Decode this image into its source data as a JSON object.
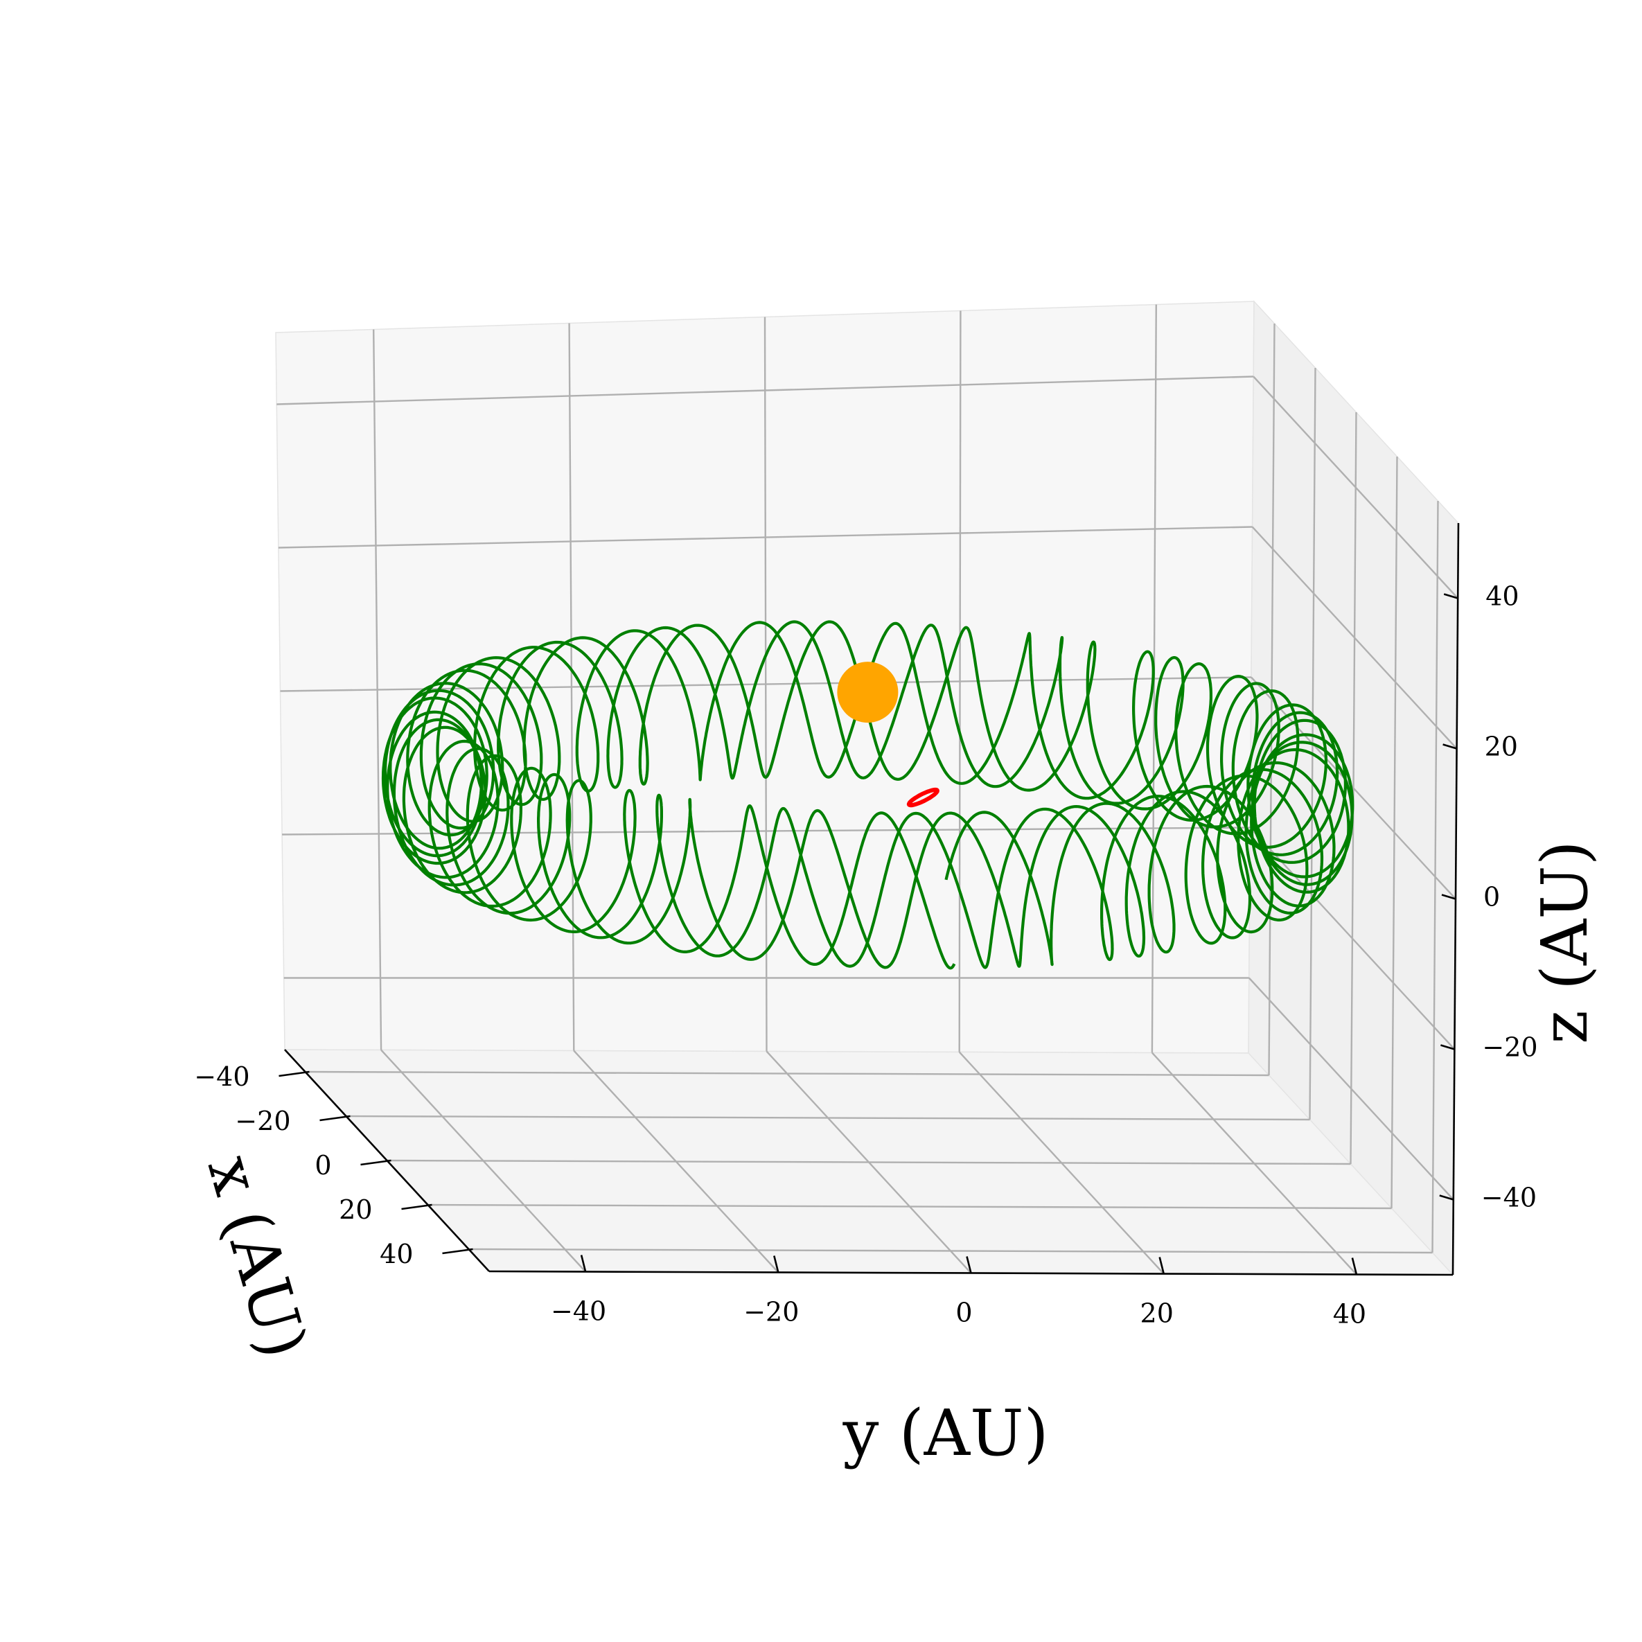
{
  "chart_data": {
    "type": "line",
    "projection": "3d",
    "title": "",
    "xlabel": "x (AU)",
    "ylabel": "y (AU)",
    "zlabel": "z (AU)",
    "xlim": [
      -50,
      50
    ],
    "ylim": [
      -50,
      50
    ],
    "zlim": [
      -50,
      50
    ],
    "xticks": [
      -40,
      -20,
      0,
      20,
      40
    ],
    "yticks": [
      -40,
      -20,
      0,
      20,
      40
    ],
    "zticks": [
      -40,
      -20,
      0,
      20,
      40
    ],
    "xtick_labels": [
      "−40",
      "−20",
      "0",
      "20",
      "40"
    ],
    "ytick_labels": [
      "−40",
      "−20",
      "0",
      "20",
      "40"
    ],
    "ztick_labels": [
      "−40",
      "−20",
      "0",
      "20",
      "40"
    ],
    "grid": true,
    "legend": "none",
    "view": {
      "elevation_deg": 15,
      "azimuth_deg": -5
    },
    "series": [
      {
        "kind": "epicycle-trajectory",
        "color": "#008000",
        "center": [
          0,
          0,
          0
        ],
        "orbit_radius": 50,
        "loop_radius": 11,
        "inclination_deg": 0,
        "loops": 60,
        "extent_x": [
          -50,
          50
        ],
        "extent_y": [
          -50,
          50
        ],
        "extent_z": [
          -11,
          11
        ]
      },
      {
        "kind": "small-orbit",
        "color": "#ff0000",
        "center": [
          8,
          4,
          2
        ],
        "radius": 1.2
      }
    ],
    "points": [
      {
        "kind": "central-body",
        "color": "#ffa500",
        "position": [
          0,
          0,
          0
        ]
      }
    ]
  },
  "colors": {
    "trajectory": "#008000",
    "small_orbit": "#ff0000",
    "star": "#ffa500",
    "pane_back": "#f7f7f7",
    "pane_side": "#f0f0f0",
    "pane_floor": "#f4f4f4",
    "grid": "#b0b0b0"
  }
}
